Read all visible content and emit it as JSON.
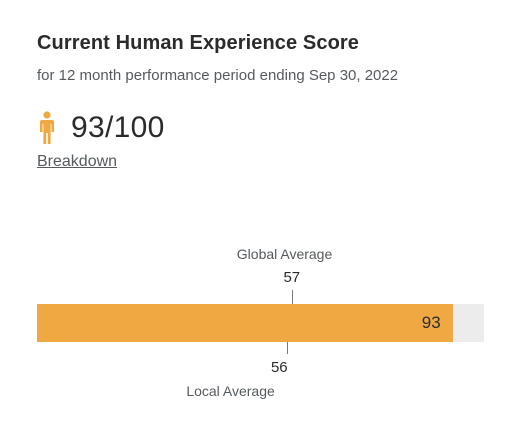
{
  "header": {
    "title": "Current Human Experience Score",
    "subtitle": "for 12 month performance period ending Sep 30, 2022"
  },
  "score": {
    "icon": "person-icon",
    "value": 93,
    "max": 100,
    "display": "93/100",
    "color": "#f0a942"
  },
  "breakdown_link": "Breakdown",
  "chart_data": {
    "type": "bar",
    "value": 93,
    "value_label": "93",
    "range": [
      0,
      100
    ],
    "markers": [
      {
        "name": "Global Average",
        "value": 57,
        "label": "57",
        "position": "above"
      },
      {
        "name": "Local Average",
        "value": 56,
        "label": "56",
        "position": "below"
      }
    ],
    "colors": {
      "fill": "#f0a942",
      "track": "#ececec"
    }
  }
}
